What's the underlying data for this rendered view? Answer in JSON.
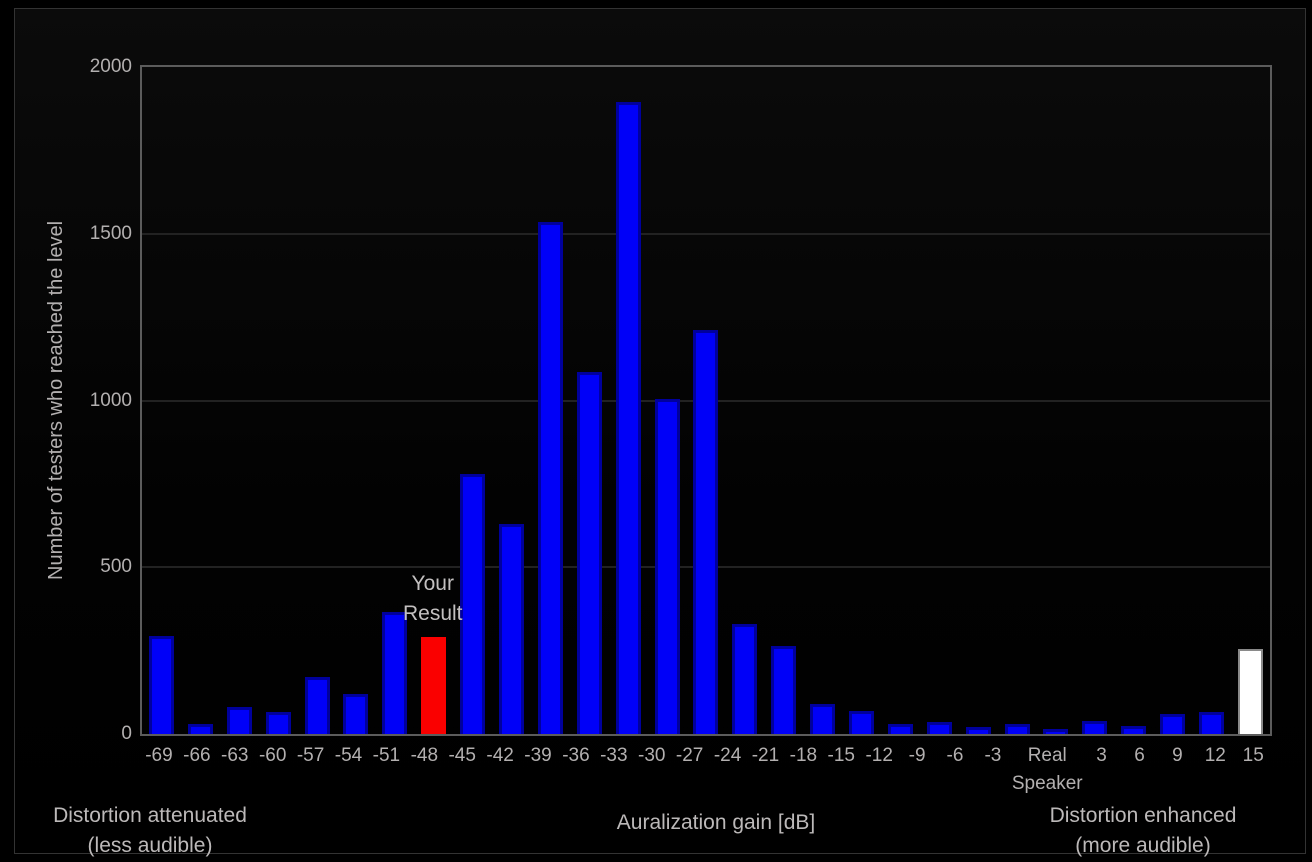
{
  "chart_data": {
    "type": "bar",
    "title": "",
    "xlabel": "Auralization gain [dB]",
    "ylabel": "Number of testers who reached the level",
    "ylim": [
      0,
      2000
    ],
    "yticks": [
      0,
      500,
      1000,
      1500,
      2000
    ],
    "grid": "horizontal-faint",
    "legend": "none",
    "categories": [
      "-69",
      "-66",
      "-63",
      "-60",
      "-57",
      "-54",
      "-51",
      "-48",
      "-45",
      "-42",
      "-39",
      "-36",
      "-33",
      "-30",
      "-27",
      "-24",
      "-21",
      "-18",
      "-15",
      "-12",
      "-9",
      "-6",
      "-3",
      "Real Speaker",
      "3",
      "6",
      "9",
      "12",
      "15"
    ],
    "values": [
      295,
      30,
      80,
      65,
      170,
      120,
      365,
      290,
      780,
      630,
      1535,
      1085,
      1895,
      1005,
      1210,
      330,
      265,
      90,
      70,
      30,
      35,
      20,
      30,
      15,
      40,
      25,
      60,
      65,
      255
    ],
    "bar_colors": {
      "default": {
        "fill": "#0000f8",
        "border": "#00009d",
        "class": "blue"
      },
      "special": [
        {
          "category": "-48",
          "fill": "#fa0000",
          "class": "red"
        },
        {
          "category": "15",
          "fill": "#ffffff",
          "border": "#8a8a8a",
          "class": "white"
        }
      ]
    },
    "annotation": {
      "line1": "Your",
      "line2": "Result",
      "category": "-48"
    },
    "captions": {
      "left_line1": "Distortion attenuated",
      "left_line2": "(less audible)",
      "center": "Auralization gain [dB]",
      "right_line1": "Distortion enhanced",
      "right_line2": "(more audible)"
    }
  },
  "colors": {
    "background": "#000000",
    "frame_border": "#333333",
    "axis_frame": "#5c5c5c",
    "gridline": "#222222",
    "tick_text": "#b3b0b0",
    "caption_text": "#bcb9b9"
  }
}
